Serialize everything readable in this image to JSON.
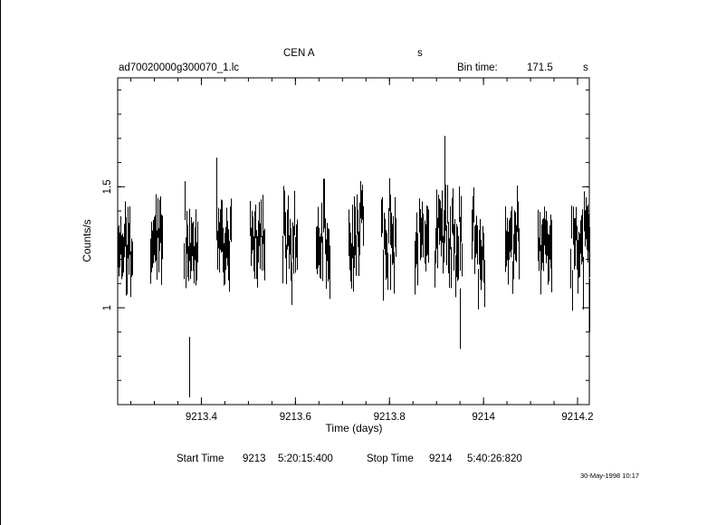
{
  "header": {
    "object": "CEN A",
    "unit_s": "s",
    "file": "ad70020000g300070_1.lc",
    "bin_label": "Bin time:",
    "bin_value": "171.5",
    "bin_unit": "s"
  },
  "footer": {
    "start_label": "Start Time",
    "start_day": "9213",
    "start_time": "5:20:15:400",
    "stop_label": "Stop Time",
    "stop_day": "9214",
    "stop_time": "5:40:26:820",
    "stamp": "30-May-1998 10:17"
  },
  "chart_data": {
    "type": "scatter",
    "style": "vertical error bars (light curve)",
    "xlabel": "Time (days)",
    "ylabel": "Counts/s",
    "xlim": [
      9213.222,
      9214.225
    ],
    "ylim": [
      0.6,
      1.95
    ],
    "xticks": [
      {
        "v": 9213.4,
        "label": "9213.4"
      },
      {
        "v": 9213.6,
        "label": "9213.6"
      },
      {
        "v": 9213.8,
        "label": "9213.8"
      },
      {
        "v": 9214.0,
        "label": "9214"
      },
      {
        "v": 9214.2,
        "label": "9214.2"
      }
    ],
    "yticks": [
      {
        "v": 1.0,
        "label": "1"
      },
      {
        "v": 1.5,
        "label": "1.5"
      }
    ],
    "x_minor_step": 0.05,
    "y_minor_step": 0.1,
    "segments": [
      {
        "x0": 9213.222,
        "x1": 9213.253,
        "n": 18,
        "seed": 11
      },
      {
        "x0": 9213.292,
        "x1": 9213.317,
        "n": 16,
        "seed": 23
      },
      {
        "x0": 9213.362,
        "x1": 9213.392,
        "n": 18,
        "seed": 37
      },
      {
        "x0": 9213.432,
        "x1": 9213.462,
        "n": 18,
        "seed": 41
      },
      {
        "x0": 9213.503,
        "x1": 9213.533,
        "n": 18,
        "seed": 53
      },
      {
        "x0": 9213.573,
        "x1": 9213.603,
        "n": 18,
        "seed": 67
      },
      {
        "x0": 9213.643,
        "x1": 9213.673,
        "n": 18,
        "seed": 71
      },
      {
        "x0": 9213.713,
        "x1": 9213.743,
        "n": 18,
        "seed": 83
      },
      {
        "x0": 9213.783,
        "x1": 9213.813,
        "n": 18,
        "seed": 97
      },
      {
        "x0": 9213.853,
        "x1": 9213.883,
        "n": 14,
        "seed": 101
      },
      {
        "x0": 9213.895,
        "x1": 9213.953,
        "n": 32,
        "seed": 113
      },
      {
        "x0": 9213.975,
        "x1": 9214.002,
        "n": 16,
        "seed": 127
      },
      {
        "x0": 9214.045,
        "x1": 9214.075,
        "n": 18,
        "seed": 131
      },
      {
        "x0": 9214.115,
        "x1": 9214.145,
        "n": 18,
        "seed": 149
      },
      {
        "x0": 9214.185,
        "x1": 9214.215,
        "n": 18,
        "seed": 157
      },
      {
        "x0": 9214.217,
        "x1": 9214.225,
        "n": 6,
        "seed": 163
      }
    ],
    "notable_points": [
      {
        "x": 9213.374,
        "lo": 0.63,
        "hi": 0.88
      },
      {
        "x": 9213.917,
        "lo": 1.45,
        "hi": 1.71
      },
      {
        "x": 9213.95,
        "lo": 0.83,
        "hi": 1.08
      },
      {
        "x": 9213.432,
        "lo": 1.38,
        "hi": 1.62
      },
      {
        "x": 9214.225,
        "lo": 0.9,
        "hi": 1.12
      }
    ],
    "y_center": 1.27,
    "y_spread": 0.07,
    "bar_halfwidth": 0.09
  }
}
